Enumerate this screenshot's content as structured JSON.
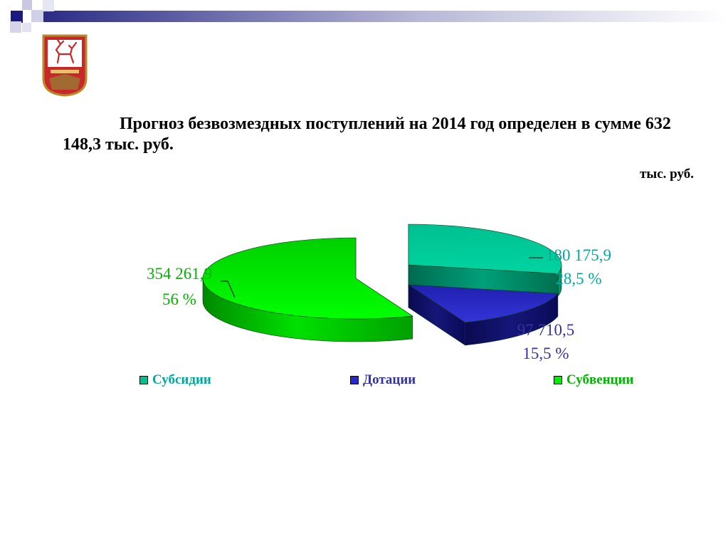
{
  "slide": {
    "title": "Прогноз безвозмездных поступлений на 2014 год определен в сумме 632 148,3 тыс. руб.",
    "unit": "тыс. руб."
  },
  "chart_data": {
    "type": "pie",
    "style": "3d-exploded",
    "unit": "тыс. руб.",
    "legend_position": "bottom",
    "slices": [
      {
        "name": "Субсидии",
        "value": 180175.9,
        "value_label": "180 175,9",
        "percent": 28.5,
        "percent_label": "28,5 %",
        "color": "#00C090"
      },
      {
        "name": "Дотации",
        "value": 97710.5,
        "value_label": "97 710,5",
        "percent": 15.5,
        "percent_label": "15,5 %",
        "color": "#2828C8"
      },
      {
        "name": "Субвенции",
        "value": 354261.9,
        "value_label": "354 261,9",
        "percent": 56,
        "percent_label": "56 %",
        "color": "#00EE00"
      }
    ],
    "label_colors": {
      "Субсидии": "#00A99D",
      "Дотации": "#3333A0",
      "Субвенции": "#00B400"
    }
  },
  "icons": {
    "coat_of_arms": "coat-of-arms-deer-icon"
  }
}
